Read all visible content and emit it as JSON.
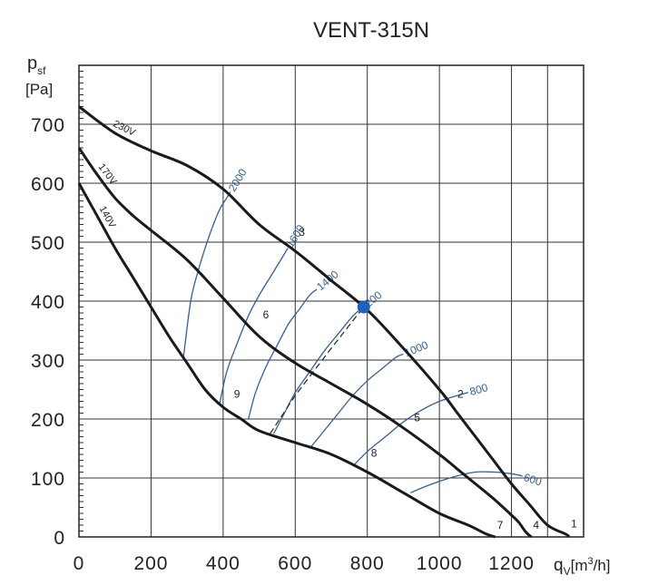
{
  "chart_data": {
    "type": "line",
    "title": "VENT-315N",
    "ylabel": "p",
    "ylabel_sub": "sf",
    "ylabel_unit": "[Pa]",
    "xlabel": "q",
    "xlabel_sub": "V",
    "xlabel_unit_pre": "[m",
    "xlabel_unit_sup": "3",
    "xlabel_unit_post": "/h]",
    "xlim": [
      0,
      1400
    ],
    "ylim": [
      0,
      800
    ],
    "x_ticks": [
      "0",
      "200",
      "400",
      "600",
      "800",
      "1000",
      "1200"
    ],
    "y_ticks": [
      "0",
      "100",
      "200",
      "300",
      "400",
      "500",
      "600",
      "700"
    ],
    "grid": true,
    "colors": {
      "curve": "#1a1a1a",
      "iso": "#2f5f9e",
      "point": "#1f5fbf"
    },
    "series": [
      {
        "name": "230V",
        "x": [
          0,
          100,
          200,
          300,
          400,
          500,
          600,
          700,
          800,
          900,
          1000,
          1050,
          1100,
          1150,
          1200,
          1250,
          1300,
          1350,
          1360
        ],
        "y": [
          730,
          685,
          655,
          630,
          590,
          530,
          485,
          435,
          385,
          320,
          250,
          210,
          170,
          130,
          90,
          55,
          20,
          5,
          0
        ]
      },
      {
        "name": "170V",
        "x": [
          0,
          50,
          100,
          150,
          200,
          300,
          400,
          500,
          600,
          700,
          800,
          900,
          1000,
          1050,
          1100,
          1150,
          1200,
          1220,
          1240,
          1255
        ],
        "y": [
          660,
          615,
          575,
          545,
          520,
          470,
          405,
          340,
          295,
          260,
          225,
          185,
          140,
          115,
          90,
          65,
          37,
          25,
          8,
          0
        ]
      },
      {
        "name": "140V",
        "x": [
          0,
          50,
          100,
          150,
          200,
          250,
          300,
          350,
          400,
          450,
          500,
          600,
          700,
          800,
          900,
          1000,
          1080,
          1130,
          1155
        ],
        "y": [
          600,
          545,
          490,
          440,
          390,
          340,
          295,
          250,
          220,
          200,
          180,
          160,
          140,
          110,
          75,
          40,
          20,
          5,
          0
        ]
      }
    ],
    "iso_lines": [
      {
        "label": "2000",
        "x": [
          290,
          310,
          330,
          350,
          370,
          390,
          410,
          420
        ],
        "y": [
          305,
          400,
          450,
          490,
          525,
          555,
          575,
          585
        ]
      },
      {
        "label": "1600",
        "x": [
          390,
          410,
          440,
          470,
          500,
          530,
          560,
          580
        ],
        "y": [
          225,
          280,
          330,
          375,
          410,
          440,
          470,
          490
        ]
      },
      {
        "label": "1400",
        "x": [
          470,
          490,
          520,
          550,
          580,
          610,
          640,
          660
        ],
        "y": [
          200,
          245,
          290,
          325,
          360,
          385,
          410,
          420
        ]
      },
      {
        "label": "1200",
        "x": [
          540,
          570,
          600,
          640,
          680,
          720,
          760,
          780
        ],
        "y": [
          175,
          210,
          245,
          280,
          315,
          345,
          375,
          385
        ]
      },
      {
        "label": "1000",
        "x": [
          640,
          680,
          720,
          760,
          800,
          840,
          880,
          900
        ],
        "y": [
          150,
          180,
          210,
          240,
          265,
          285,
          305,
          310
        ]
      },
      {
        "label": "800",
        "x": [
          760,
          800,
          850,
          900,
          950,
          1000,
          1050,
          1080
        ],
        "y": [
          120,
          145,
          170,
          195,
          215,
          230,
          240,
          245
        ]
      },
      {
        "label": "600",
        "x": [
          920,
          980,
          1040,
          1100,
          1150,
          1190,
          1220,
          1230
        ],
        "y": [
          75,
          90,
          102,
          110,
          110,
          108,
          105,
          103
        ]
      }
    ],
    "system_line": {
      "x": [
        530,
        600,
        700,
        790
      ],
      "y": [
        175,
        240,
        320,
        390
      ]
    },
    "operating_point": {
      "x": 790,
      "y": 390
    },
    "points": [
      {
        "label": "1",
        "x": 1355,
        "y": 10
      },
      {
        "label": "2",
        "x": 1040,
        "y": 230
      },
      {
        "label": "3",
        "x": 600,
        "y": 505
      },
      {
        "label": "4",
        "x": 1250,
        "y": 8
      },
      {
        "label": "5",
        "x": 920,
        "y": 190
      },
      {
        "label": "6",
        "x": 500,
        "y": 365
      },
      {
        "label": "7",
        "x": 1150,
        "y": 8
      },
      {
        "label": "8",
        "x": 800,
        "y": 130
      },
      {
        "label": "9",
        "x": 420,
        "y": 230
      }
    ]
  }
}
